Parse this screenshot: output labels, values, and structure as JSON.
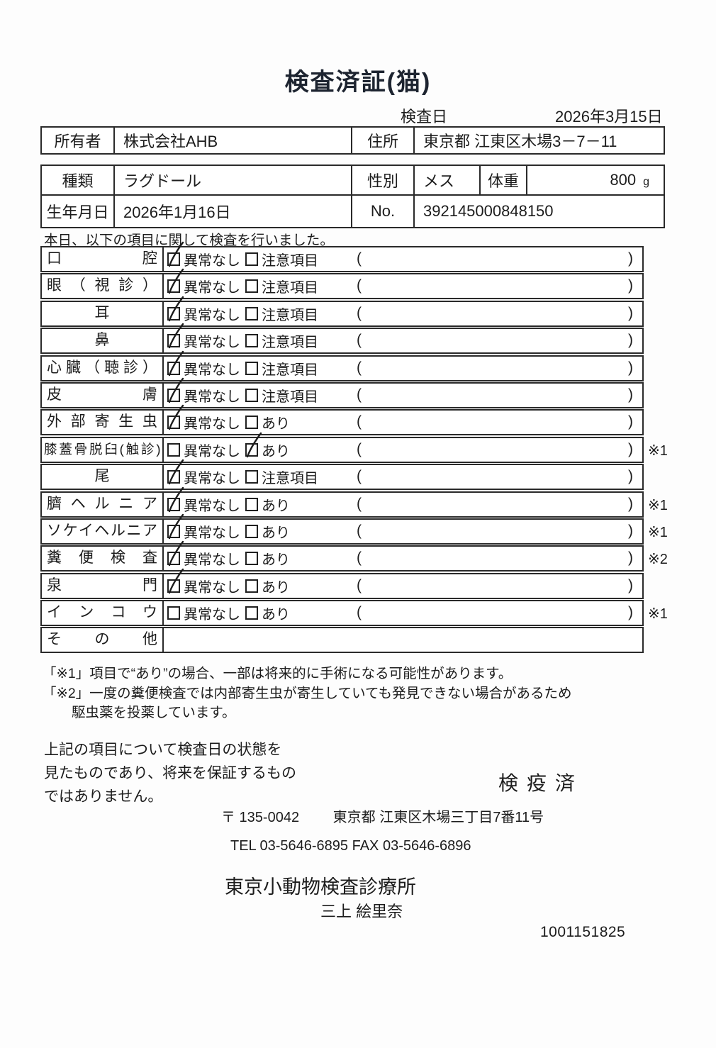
{
  "document": {
    "title": "検査済証(猫)",
    "inspection_date": {
      "label": "検査日",
      "value": "2026年3月15日"
    },
    "owner_row": {
      "owner_label": "所有者",
      "owner_value": "株式会社AHB",
      "address_label": "住所",
      "address_value": "東京都 江東区木場3－7－11"
    },
    "pet_row": {
      "breed_label": "種類",
      "breed_value": "ラグドール",
      "sex_label": "性別",
      "sex_value": "メス",
      "weight_label": "体重",
      "weight_value": "800",
      "weight_unit": "g",
      "birth_label": "生年月日",
      "birth_value": "2026年1月16日",
      "no_label": "No.",
      "no_value": "392145000848150"
    },
    "intro": "本日、以下の項目に関して検査を行いました。"
  },
  "checklist": {
    "paren_open": "(",
    "paren_close": ")",
    "rows": [
      {
        "label": "口腔",
        "opt1": "異常なし",
        "checked1": true,
        "opt2": "注意項目",
        "checked2": false,
        "note": ""
      },
      {
        "label": "眼（視診）",
        "opt1": "異常なし",
        "checked1": true,
        "opt2": "注意項目",
        "checked2": false,
        "note": ""
      },
      {
        "label": "耳",
        "opt1": "異常なし",
        "checked1": true,
        "opt2": "注意項目",
        "checked2": false,
        "note": ""
      },
      {
        "label": "鼻",
        "opt1": "異常なし",
        "checked1": true,
        "opt2": "注意項目",
        "checked2": false,
        "note": ""
      },
      {
        "label": "心臓（聴診）",
        "opt1": "異常なし",
        "checked1": true,
        "opt2": "注意項目",
        "checked2": false,
        "note": ""
      },
      {
        "label": "皮膚",
        "opt1": "異常なし",
        "checked1": true,
        "opt2": "注意項目",
        "checked2": false,
        "note": ""
      },
      {
        "label": "外部寄生虫",
        "opt1": "異常なし",
        "checked1": true,
        "opt2": "あり",
        "checked2": false,
        "note": ""
      },
      {
        "label": "膝蓋骨脱臼(触診)",
        "opt1": "異常なし",
        "checked1": false,
        "opt2": "あり",
        "checked2": true,
        "note": "※1"
      },
      {
        "label": "尾",
        "opt1": "異常なし",
        "checked1": true,
        "opt2": "注意項目",
        "checked2": false,
        "note": ""
      },
      {
        "label": "臍ヘルニア",
        "opt1": "異常なし",
        "checked1": true,
        "opt2": "あり",
        "checked2": false,
        "note": "※1"
      },
      {
        "label": "ソケイヘルニア",
        "opt1": "異常なし",
        "checked1": true,
        "opt2": "あり",
        "checked2": false,
        "note": "※1"
      },
      {
        "label": "糞便検査",
        "opt1": "異常なし",
        "checked1": true,
        "opt2": "あり",
        "checked2": false,
        "note": "※2"
      },
      {
        "label": "泉門",
        "opt1": "異常なし",
        "checked1": true,
        "opt2": "あり",
        "checked2": false,
        "note": ""
      },
      {
        "label": "インコウ",
        "opt1": "異常なし",
        "checked1": false,
        "opt2": "あり",
        "checked2": false,
        "note": "※1"
      },
      {
        "label": "その他",
        "opt1": "",
        "checked1": false,
        "opt2": "",
        "checked2": false,
        "note": ""
      }
    ]
  },
  "notes": {
    "note1": "「※1」項目で“あり”の場合、一部は将来的に手術になる可能性があります。",
    "note2_line1": "「※2」一度の糞便検査では内部寄生虫が寄生していても発見できない場合があるため",
    "note2_line2": "駆虫薬を投薬しています。"
  },
  "footer": {
    "disclaimer_line1": "上記の項目について検査日の状態を",
    "disclaimer_line2": "見たものであり、将来を保証するもの",
    "disclaimer_line3": "ではありません。",
    "quarantine_stamp": "検疫済",
    "postal": "〒 135-0042",
    "address": "東京都 江東区木場三丁目7番11号",
    "tel_fax": "TEL 03-5646-6895  FAX 03-5646-6896",
    "clinic_name": "東京小動物検査診療所",
    "veterinarian": "三上 絵里奈",
    "serial_number": "1001151825"
  }
}
